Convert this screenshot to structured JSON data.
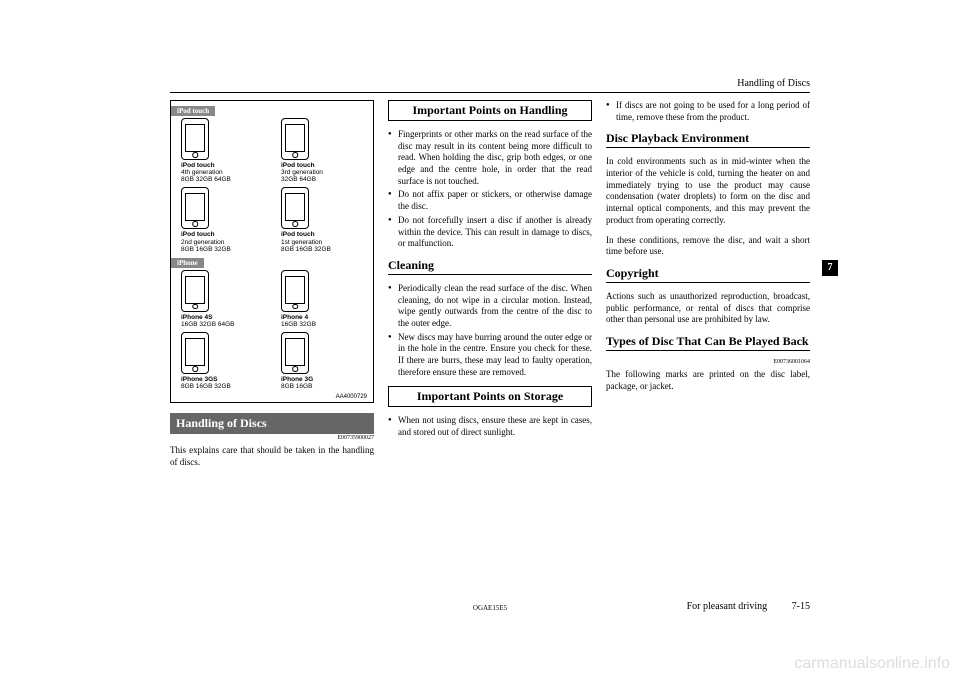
{
  "header": {
    "title": "Handling of Discs"
  },
  "side_tab": "7",
  "figure": {
    "sections": [
      {
        "tag": "iPod touch",
        "rows": [
          [
            {
              "name": "iPod touch",
              "sub1": "4th generation",
              "sub2": "8GB 32GB 64GB"
            },
            {
              "name": "iPod touch",
              "sub1": "3rd generation",
              "sub2": "32GB 64GB"
            }
          ],
          [
            {
              "name": "iPod touch",
              "sub1": "2nd generation",
              "sub2": "8GB 16GB 32GB"
            },
            {
              "name": "iPod touch",
              "sub1": "1st generation",
              "sub2": "8GB 16GB 32GB"
            }
          ]
        ]
      },
      {
        "tag": "iPhone",
        "rows": [
          [
            {
              "name": "iPhone 4S",
              "sub1": "16GB 32GB 64GB",
              "sub2": ""
            },
            {
              "name": "iPhone 4",
              "sub1": "16GB 32GB",
              "sub2": ""
            }
          ],
          [
            {
              "name": "iPhone 3GS",
              "sub1": "8GB 16GB 32GB",
              "sub2": ""
            },
            {
              "name": "iPhone 3G",
              "sub1": "8GB 16GB",
              "sub2": ""
            }
          ]
        ]
      }
    ],
    "code": "AA4000729"
  },
  "col1": {
    "handling_heading": "Handling of Discs",
    "handling_code": "E00735900027",
    "handling_para": "This explains care that should be taken in the handling of discs."
  },
  "col2": {
    "h_important_handling": "Important Points on Handling",
    "bullets_handling": [
      "Fingerprints or other marks on the read surface of the disc may result in its content being more difficult to read. When holding the disc, grip both edges, or one edge and the centre hole, in order that the read surface is not touched.",
      "Do not affix paper or stickers, or otherwise damage the disc.",
      "Do not forcefully insert a disc if another is already within the device. This can result in damage to discs, or malfunction."
    ],
    "h_cleaning": "Cleaning",
    "bullets_cleaning": [
      "Periodically clean the read surface of the disc. When cleaning, do not wipe in a circular motion. Instead, wipe gently outwards from the centre of the disc to the outer edge.",
      "New discs may have burring around the outer edge or in the hole in the centre. Ensure you check for these. If there are burrs, these may lead to faulty operation, therefore ensure these are removed."
    ],
    "h_important_storage": "Important Points on Storage",
    "bullets_storage": [
      "When not using discs, ensure these are kept in cases, and stored out of direct sunlight."
    ]
  },
  "col3": {
    "bullets_storage_cont": [
      "If discs are not going to be used for a long period of time, remove these from the product."
    ],
    "h_playback": "Disc Playback Environment",
    "para_playback1": "In cold environments such as in mid-winter when the interior of the vehicle is cold, turning the heater on and immediately trying to use the product may cause condensation (water droplets) to form on the disc and internal optical components, and this may prevent the product from operating correctly.",
    "para_playback2": "In these conditions, remove the disc, and wait a short time before use.",
    "h_copyright": "Copyright",
    "para_copyright": "Actions such as unauthorized reproduction, broadcast, public performance, or rental of discs that comprise other than personal use are prohibited by law.",
    "h_types": "Types of Disc That Can Be Played Back",
    "types_code": "E00736001064",
    "para_types": "The following marks are printed on the disc label, package, or jacket."
  },
  "footer": {
    "code": "OGAE15E5",
    "label": "For pleasant driving",
    "page": "7-15"
  },
  "watermark": "carmanualsonline.info"
}
